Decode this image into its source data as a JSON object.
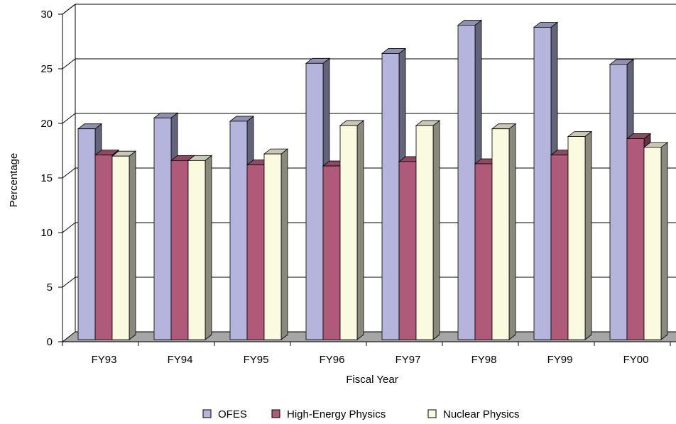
{
  "chart_data": {
    "type": "bar",
    "xlabel": "Fiscal Year",
    "ylabel": "Percentage",
    "ylim": [
      0,
      30
    ],
    "yticks": [
      0,
      5,
      10,
      15,
      20,
      25,
      30
    ],
    "grid": true,
    "legend_position": "bottom",
    "categories": [
      "FY93",
      "FY94",
      "FY95",
      "FY96",
      "FY97",
      "FY98",
      "FY99",
      "FY00"
    ],
    "series": [
      {
        "name": "OFES",
        "color": "#B4B4DC",
        "values": [
          19.5,
          20.5,
          20.2,
          25.5,
          26.4,
          29.0,
          28.8,
          25.4
        ]
      },
      {
        "name": "High-Energy Physics",
        "color": "#B05A7A",
        "values": [
          17.1,
          16.6,
          16.2,
          16.1,
          16.5,
          16.3,
          17.1,
          18.6
        ]
      },
      {
        "name": "Nuclear Physics",
        "color": "#FAFAE1",
        "values": [
          17.0,
          16.6,
          17.2,
          19.8,
          19.8,
          19.5,
          18.8,
          17.8
        ]
      }
    ]
  }
}
